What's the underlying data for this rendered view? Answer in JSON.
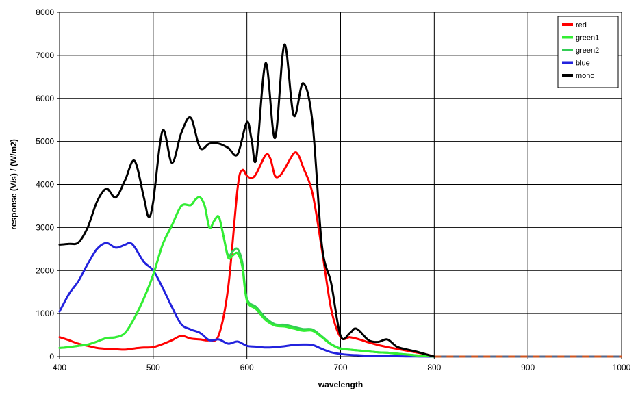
{
  "chart_data": {
    "type": "line",
    "title": "",
    "xlabel": "wavelength",
    "ylabel": "response (V/s) / (W/m2)",
    "xlim": [
      400,
      1000
    ],
    "ylim": [
      0,
      8000
    ],
    "x_ticks": [
      400,
      500,
      600,
      700,
      800,
      900,
      1000
    ],
    "y_ticks": [
      0,
      1000,
      2000,
      3000,
      4000,
      5000,
      6000,
      7000,
      8000
    ],
    "grid": true,
    "legend": "top-right",
    "series": [
      {
        "name": "red",
        "color": "#ff0000",
        "points": [
          [
            400,
            450
          ],
          [
            410,
            380
          ],
          [
            420,
            300
          ],
          [
            430,
            250
          ],
          [
            440,
            200
          ],
          [
            450,
            180
          ],
          [
            460,
            170
          ],
          [
            470,
            160
          ],
          [
            480,
            190
          ],
          [
            490,
            210
          ],
          [
            500,
            220
          ],
          [
            510,
            290
          ],
          [
            520,
            380
          ],
          [
            530,
            480
          ],
          [
            540,
            420
          ],
          [
            550,
            400
          ],
          [
            560,
            380
          ],
          [
            570,
            500
          ],
          [
            580,
            1600
          ],
          [
            590,
            3900
          ],
          [
            595,
            4330
          ],
          [
            600,
            4200
          ],
          [
            605,
            4150
          ],
          [
            610,
            4250
          ],
          [
            620,
            4680
          ],
          [
            625,
            4600
          ],
          [
            630,
            4200
          ],
          [
            635,
            4200
          ],
          [
            640,
            4350
          ],
          [
            650,
            4720
          ],
          [
            655,
            4680
          ],
          [
            660,
            4400
          ],
          [
            670,
            3800
          ],
          [
            680,
            2500
          ],
          [
            690,
            1100
          ],
          [
            700,
            450
          ],
          [
            710,
            450
          ],
          [
            720,
            400
          ],
          [
            730,
            330
          ],
          [
            740,
            270
          ],
          [
            750,
            220
          ],
          [
            760,
            180
          ],
          [
            770,
            140
          ],
          [
            780,
            100
          ],
          [
            790,
            60
          ],
          [
            800,
            0
          ]
        ]
      },
      {
        "name": "green1",
        "color": "#33ee33",
        "points": [
          [
            400,
            200
          ],
          [
            410,
            220
          ],
          [
            420,
            250
          ],
          [
            430,
            280
          ],
          [
            440,
            350
          ],
          [
            450,
            430
          ],
          [
            460,
            450
          ],
          [
            470,
            550
          ],
          [
            480,
            900
          ],
          [
            490,
            1350
          ],
          [
            500,
            1900
          ],
          [
            510,
            2600
          ],
          [
            520,
            3050
          ],
          [
            530,
            3500
          ],
          [
            540,
            3520
          ],
          [
            545,
            3650
          ],
          [
            550,
            3700
          ],
          [
            555,
            3500
          ],
          [
            560,
            3000
          ],
          [
            565,
            3150
          ],
          [
            570,
            3250
          ],
          [
            575,
            2800
          ],
          [
            580,
            2300
          ],
          [
            585,
            2350
          ],
          [
            590,
            2400
          ],
          [
            595,
            2100
          ],
          [
            600,
            1300
          ],
          [
            610,
            1100
          ],
          [
            620,
            850
          ],
          [
            630,
            720
          ],
          [
            640,
            700
          ],
          [
            650,
            650
          ],
          [
            660,
            600
          ],
          [
            670,
            600
          ],
          [
            680,
            450
          ],
          [
            690,
            280
          ],
          [
            700,
            180
          ],
          [
            710,
            160
          ],
          [
            720,
            140
          ],
          [
            730,
            120
          ],
          [
            740,
            100
          ],
          [
            750,
            90
          ],
          [
            760,
            70
          ],
          [
            770,
            50
          ],
          [
            780,
            30
          ],
          [
            790,
            15
          ],
          [
            800,
            0
          ]
        ]
      },
      {
        "name": "green2",
        "color": "#33cc55",
        "points": [
          [
            400,
            200
          ],
          [
            410,
            220
          ],
          [
            420,
            250
          ],
          [
            430,
            280
          ],
          [
            440,
            350
          ],
          [
            450,
            430
          ],
          [
            460,
            450
          ],
          [
            470,
            550
          ],
          [
            480,
            900
          ],
          [
            490,
            1350
          ],
          [
            500,
            1900
          ],
          [
            510,
            2600
          ],
          [
            520,
            3050
          ],
          [
            530,
            3500
          ],
          [
            540,
            3520
          ],
          [
            545,
            3650
          ],
          [
            550,
            3700
          ],
          [
            555,
            3500
          ],
          [
            560,
            3000
          ],
          [
            565,
            3150
          ],
          [
            570,
            3250
          ],
          [
            575,
            2800
          ],
          [
            580,
            2350
          ],
          [
            585,
            2450
          ],
          [
            590,
            2500
          ],
          [
            595,
            2200
          ],
          [
            600,
            1350
          ],
          [
            610,
            1150
          ],
          [
            620,
            900
          ],
          [
            630,
            750
          ],
          [
            640,
            740
          ],
          [
            650,
            690
          ],
          [
            660,
            640
          ],
          [
            670,
            630
          ],
          [
            680,
            470
          ],
          [
            690,
            290
          ],
          [
            700,
            190
          ],
          [
            710,
            160
          ],
          [
            720,
            140
          ],
          [
            730,
            120
          ],
          [
            740,
            100
          ],
          [
            750,
            90
          ],
          [
            760,
            70
          ],
          [
            770,
            50
          ],
          [
            780,
            30
          ],
          [
            790,
            15
          ],
          [
            800,
            0
          ]
        ]
      },
      {
        "name": "blue",
        "color": "#2222dd",
        "points": [
          [
            400,
            1050
          ],
          [
            410,
            1450
          ],
          [
            420,
            1750
          ],
          [
            430,
            2150
          ],
          [
            440,
            2500
          ],
          [
            450,
            2640
          ],
          [
            460,
            2530
          ],
          [
            470,
            2600
          ],
          [
            475,
            2640
          ],
          [
            480,
            2550
          ],
          [
            490,
            2200
          ],
          [
            500,
            2000
          ],
          [
            510,
            1600
          ],
          [
            520,
            1150
          ],
          [
            530,
            750
          ],
          [
            540,
            630
          ],
          [
            550,
            550
          ],
          [
            560,
            380
          ],
          [
            570,
            400
          ],
          [
            580,
            300
          ],
          [
            590,
            350
          ],
          [
            600,
            250
          ],
          [
            610,
            230
          ],
          [
            620,
            210
          ],
          [
            630,
            220
          ],
          [
            640,
            240
          ],
          [
            650,
            270
          ],
          [
            660,
            280
          ],
          [
            670,
            270
          ],
          [
            680,
            180
          ],
          [
            690,
            100
          ],
          [
            700,
            60
          ],
          [
            710,
            40
          ],
          [
            720,
            30
          ],
          [
            730,
            20
          ],
          [
            740,
            15
          ],
          [
            750,
            10
          ],
          [
            760,
            8
          ],
          [
            770,
            5
          ],
          [
            780,
            3
          ],
          [
            790,
            1
          ],
          [
            800,
            0
          ]
        ]
      },
      {
        "name": "mono",
        "color": "#000000",
        "points": [
          [
            400,
            2600
          ],
          [
            410,
            2620
          ],
          [
            420,
            2650
          ],
          [
            430,
            3000
          ],
          [
            440,
            3600
          ],
          [
            450,
            3900
          ],
          [
            460,
            3700
          ],
          [
            470,
            4100
          ],
          [
            480,
            4550
          ],
          [
            490,
            3700
          ],
          [
            495,
            3250
          ],
          [
            500,
            3600
          ],
          [
            510,
            5250
          ],
          [
            520,
            4500
          ],
          [
            530,
            5200
          ],
          [
            540,
            5550
          ],
          [
            550,
            4850
          ],
          [
            560,
            4950
          ],
          [
            570,
            4950
          ],
          [
            580,
            4850
          ],
          [
            590,
            4700
          ],
          [
            600,
            5450
          ],
          [
            605,
            5050
          ],
          [
            610,
            4600
          ],
          [
            620,
            6820
          ],
          [
            630,
            5080
          ],
          [
            640,
            7250
          ],
          [
            650,
            5600
          ],
          [
            660,
            6350
          ],
          [
            670,
            5450
          ],
          [
            680,
            2600
          ],
          [
            690,
            1700
          ],
          [
            700,
            480
          ],
          [
            710,
            550
          ],
          [
            715,
            650
          ],
          [
            720,
            600
          ],
          [
            730,
            380
          ],
          [
            740,
            340
          ],
          [
            750,
            400
          ],
          [
            760,
            230
          ],
          [
            770,
            170
          ],
          [
            780,
            120
          ],
          [
            790,
            60
          ],
          [
            800,
            0
          ]
        ]
      }
    ],
    "extension": {
      "colors": [
        "#cc5522",
        "#556688"
      ],
      "points": [
        [
          800,
          0
        ],
        [
          1000,
          0
        ]
      ]
    }
  }
}
